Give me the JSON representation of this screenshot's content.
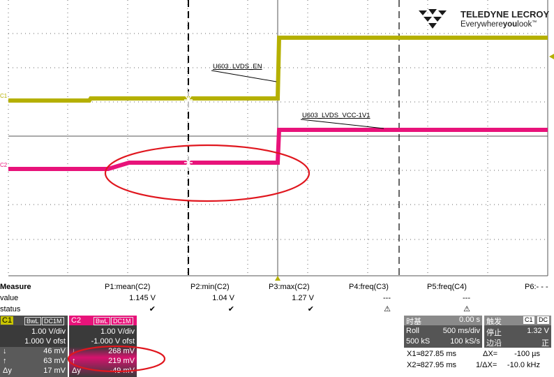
{
  "brand": {
    "name": "TELEDYNE LECROY",
    "tagline_pre": "Everywhere",
    "tagline_bold": "you",
    "tagline_post": "look",
    "tm": "™"
  },
  "traces": {
    "c1_label": "C1",
    "c2_label": "C2",
    "c1_color": "#b5b000",
    "c2_color": "#e8137a",
    "annot_c1": "U603_LVDS_EN",
    "annot_c2": "U603_LVDS_VCC-1V1"
  },
  "measure": {
    "row_headers": [
      "Measure",
      "value",
      "status"
    ],
    "columns": [
      {
        "name": "P1:mean(C2)",
        "value": "1.145 V",
        "status": "✔"
      },
      {
        "name": "P2:min(C2)",
        "value": "1.04 V",
        "status": "✔"
      },
      {
        "name": "P3:max(C2)",
        "value": "1.27 V",
        "status": "✔"
      },
      {
        "name": "P4:freq(C3)",
        "value": "---",
        "status": "⚠"
      },
      {
        "name": "P5:freq(C4)",
        "value": "---",
        "status": "⚠"
      },
      {
        "name": "P6:- - -",
        "value": "",
        "status": ""
      }
    ]
  },
  "c1_panel": {
    "tag": "C1",
    "bw": "BwL",
    "coupling": "DC1M",
    "vdiv": "1.00 V/div",
    "offset": "1.000 V ofst",
    "r1_icon": "↓",
    "r1": "46 mV",
    "r2_icon": "↑",
    "r2": "63 mV",
    "r3_icon": "Δy",
    "r3": "17 mV"
  },
  "c2_panel": {
    "tag": "C2",
    "bw": "BwL",
    "coupling": "DC1M",
    "vdiv": "1.00 V/div",
    "offset": "-1.000 V ofst",
    "r1_icon": "↓",
    "r1": "268 mV",
    "r2_icon": "↑",
    "r2": "219 mV",
    "r3_icon": "Δy",
    "r3": "-49 mV"
  },
  "timebase": {
    "title": "时基",
    "delay": "0.00 s",
    "mode": "Roll",
    "tdiv": "500 ms/div",
    "samples": "500 kS",
    "rate": "100 kS/s"
  },
  "trigger": {
    "title": "触发",
    "source": "C1",
    "coupling": "DC",
    "state": "停止",
    "level": "1.32 V",
    "edge_label": "边沿",
    "slope": "正"
  },
  "cursors": {
    "x1_label": "X1=",
    "x1": "-827.85 ms",
    "dx_label": "ΔX=",
    "dx": "-100 µs",
    "x2_label": "X2=",
    "x2": "-827.95 ms",
    "inv_label": "1/ΔX=",
    "inv": "-10.0 kHz"
  }
}
